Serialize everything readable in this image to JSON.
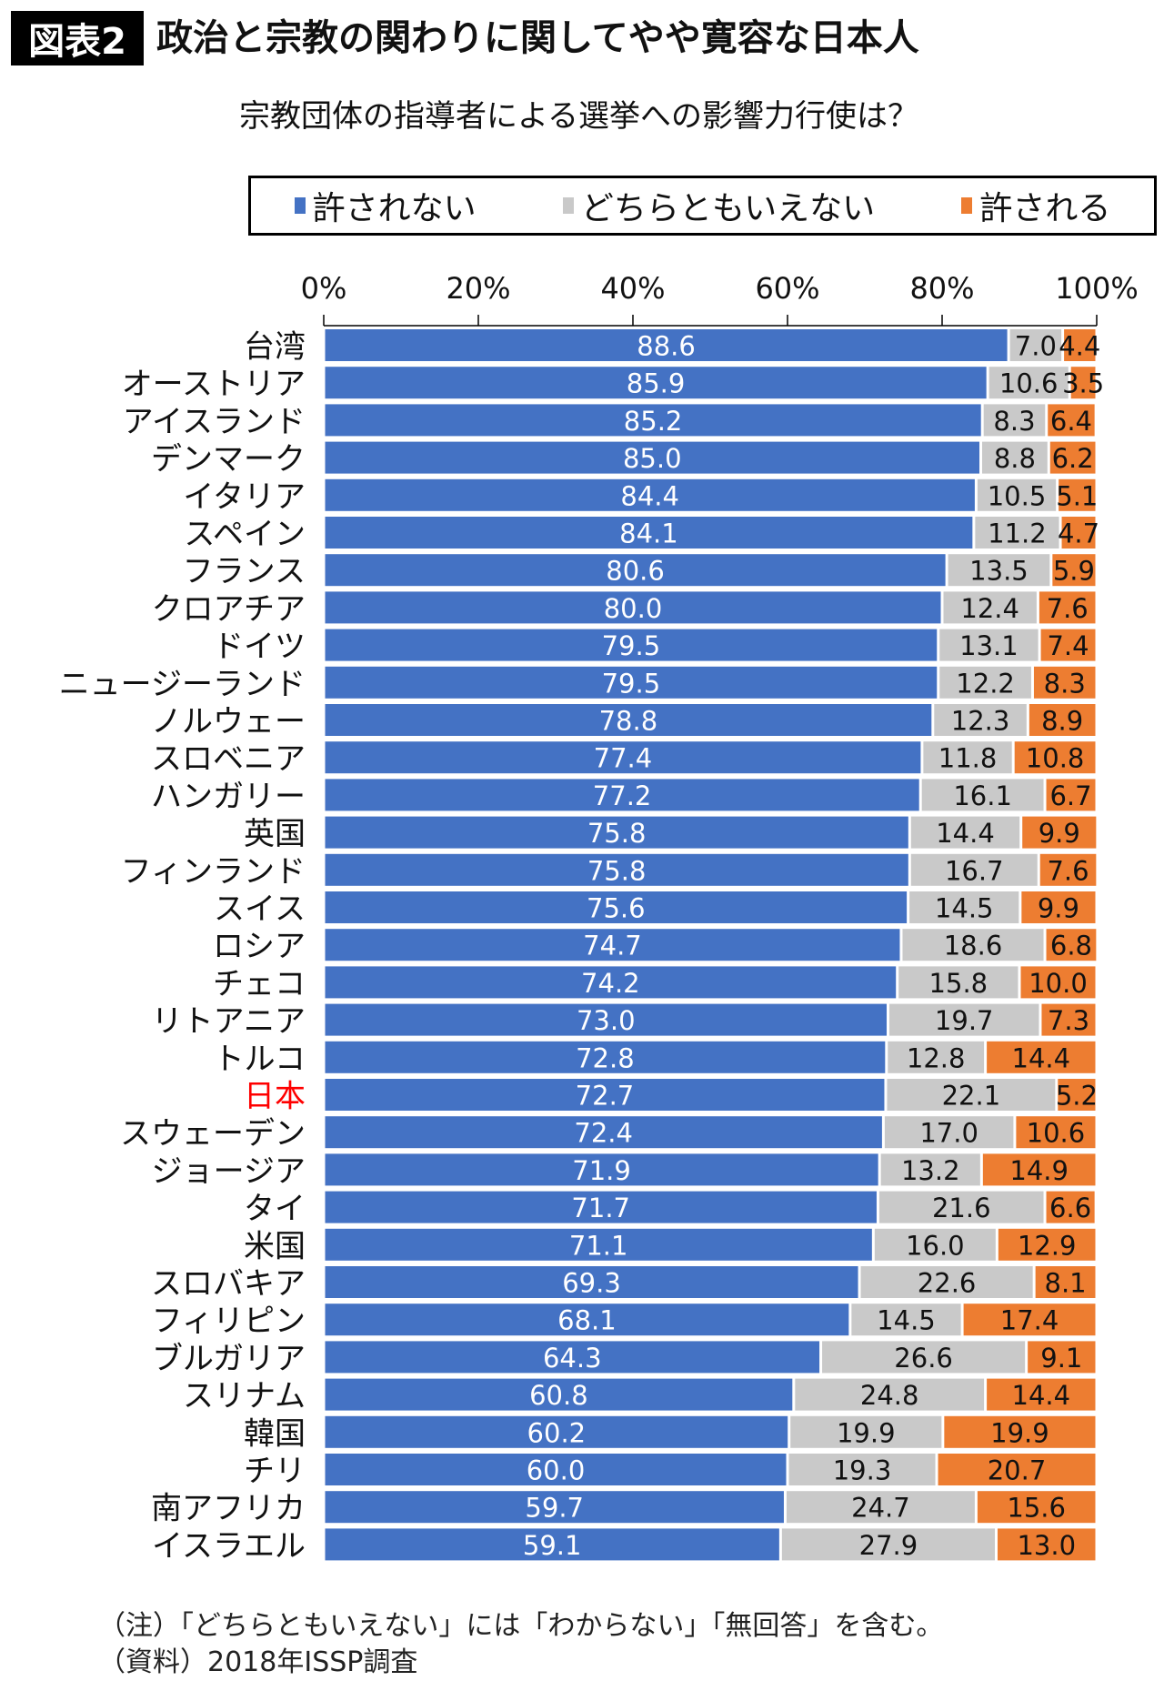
{
  "header": {
    "badge": "図表2",
    "title": "政治と宗教の関わりに関してやや寛容な日本人"
  },
  "footer": {
    "note": "（注）「どちらともいえない」には「わからない」「無回答」を含む。",
    "source": "（資料）2018年ISSP調査"
  },
  "chart_data": {
    "type": "bar",
    "orientation": "horizontal",
    "stacked": true,
    "title": "宗教団体の指導者による選挙への影響力行使は？",
    "xlim": [
      0,
      100
    ],
    "xticks": [
      "0%",
      "20%",
      "40%",
      "60%",
      "80%",
      "100%"
    ],
    "legend_position": "top",
    "highlight": {
      "category": "日本",
      "color": "#ff0000"
    },
    "categories": [
      "台湾",
      "オーストリア",
      "アイスランド",
      "デンマーク",
      "イタリア",
      "スペイン",
      "フランス",
      "クロアチア",
      "ドイツ",
      "ニュージーランド",
      "ノルウェー",
      "スロベニア",
      "ハンガリー",
      "英国",
      "フィンランド",
      "スイス",
      "ロシア",
      "チェコ",
      "リトアニア",
      "トルコ",
      "日本",
      "スウェーデン",
      "ジョージア",
      "タイ",
      "米国",
      "スロバキア",
      "フィリピン",
      "ブルガリア",
      "スリナム",
      "韓国",
      "チリ",
      "南アフリカ",
      "イスラエル"
    ],
    "series": [
      {
        "name": "許されない",
        "color": "#4472c4",
        "values": [
          88.6,
          85.9,
          85.2,
          85.0,
          84.4,
          84.1,
          80.6,
          80.0,
          79.5,
          79.5,
          78.8,
          77.4,
          77.2,
          75.8,
          75.8,
          75.6,
          74.7,
          74.2,
          73.0,
          72.8,
          72.7,
          72.4,
          71.9,
          71.7,
          71.1,
          69.3,
          68.1,
          64.3,
          60.8,
          60.2,
          60.0,
          59.7,
          59.1
        ]
      },
      {
        "name": "どちらともいえない",
        "color": "#c9c9c9",
        "values": [
          7.0,
          10.6,
          8.3,
          8.8,
          10.5,
          11.2,
          13.5,
          12.4,
          13.1,
          12.2,
          12.3,
          11.8,
          16.1,
          14.4,
          16.7,
          14.5,
          18.6,
          15.8,
          19.7,
          12.8,
          22.1,
          17.0,
          13.2,
          21.6,
          16.0,
          22.6,
          14.5,
          26.6,
          24.8,
          19.9,
          19.3,
          24.7,
          27.9
        ]
      },
      {
        "name": "許される",
        "color": "#ed7d31",
        "values": [
          4.4,
          3.5,
          6.4,
          6.2,
          5.1,
          4.7,
          5.9,
          7.6,
          7.4,
          8.3,
          8.9,
          10.8,
          6.7,
          9.9,
          7.6,
          9.9,
          6.8,
          10.0,
          7.3,
          14.4,
          5.2,
          10.6,
          14.9,
          6.6,
          12.9,
          8.1,
          17.4,
          9.1,
          14.4,
          19.9,
          20.7,
          15.6,
          13.0
        ]
      }
    ]
  }
}
